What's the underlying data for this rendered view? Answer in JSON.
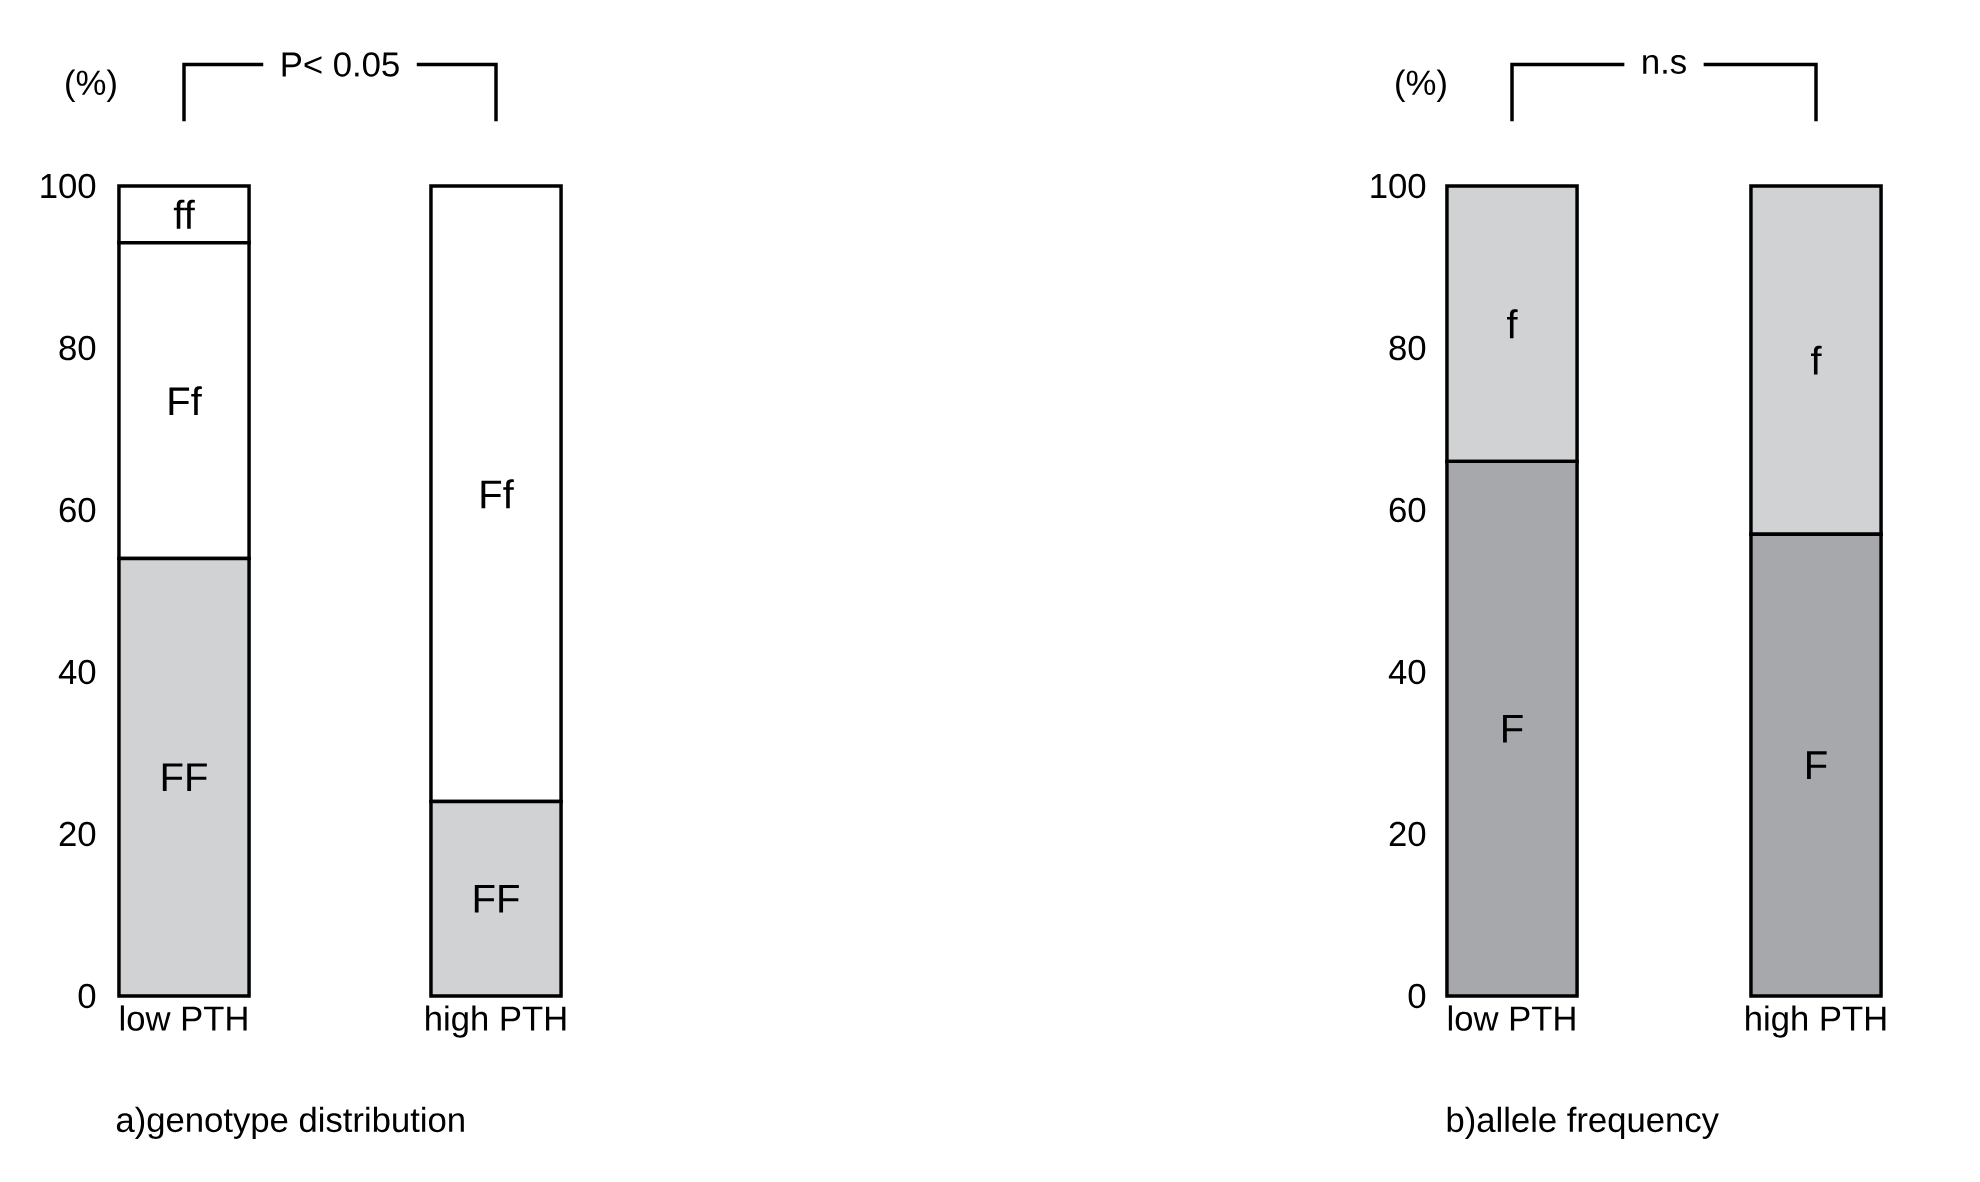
{
  "chart_data": [
    {
      "type": "bar",
      "stacked": true,
      "title": "a)genotype distribution",
      "ylabel": "(%)",
      "annotations": [
        "P< 0.05"
      ],
      "categories": [
        "low PTH",
        "high PTH"
      ],
      "ylim": [
        0,
        100
      ],
      "yticks": [
        0,
        20,
        40,
        60,
        80,
        100
      ],
      "series": [
        {
          "name": "FF",
          "color": "#d1d2d4",
          "values": [
            54,
            24
          ]
        },
        {
          "name": "Ff",
          "color": "#ffffff",
          "values": [
            39,
            76
          ]
        },
        {
          "name": "ff",
          "color": "#ffffff",
          "values": [
            7,
            0
          ]
        }
      ]
    },
    {
      "type": "bar",
      "stacked": true,
      "title": "b)allele frequency",
      "ylabel": "(%)",
      "annotations": [
        "n.s"
      ],
      "categories": [
        "low PTH",
        "high PTH"
      ],
      "ylim": [
        0,
        100
      ],
      "yticks": [
        0,
        20,
        40,
        60,
        80,
        100
      ],
      "series": [
        {
          "name": "F",
          "color": "#a7a8ac",
          "values": [
            66,
            57
          ]
        },
        {
          "name": "f",
          "color": "#d1d2d4",
          "values": [
            34,
            43
          ]
        }
      ]
    }
  ]
}
